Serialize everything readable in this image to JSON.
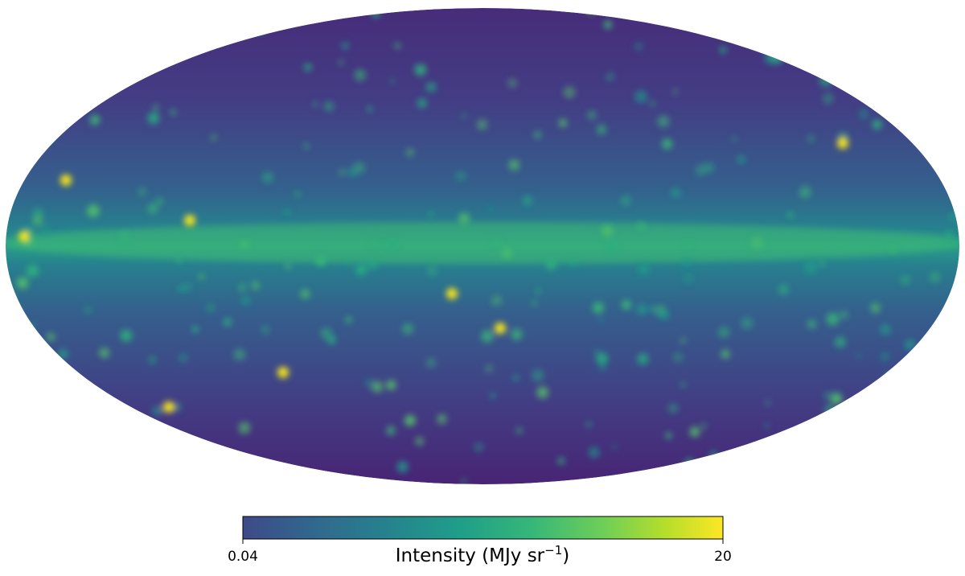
{
  "map": {
    "projection": "mollweide",
    "colormap": "viridis",
    "colorbar": {
      "label": "Intensity (MJy sr",
      "label_superscript": "−1",
      "label_end": ")",
      "clim": [
        0.04,
        20
      ],
      "ticks": [
        0.04,
        20
      ]
    }
  }
}
